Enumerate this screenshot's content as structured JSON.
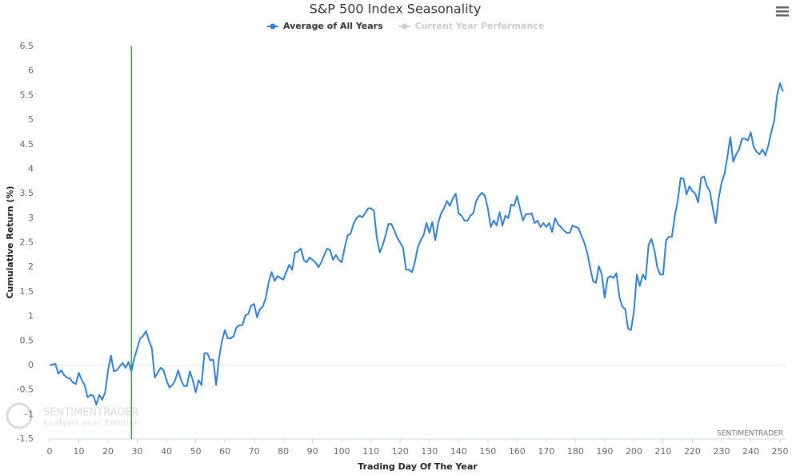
{
  "chart_data": {
    "type": "line",
    "title": "S&P 500 Index Seasonality",
    "xlabel": "Trading Day Of The Year",
    "ylabel": "Cumulative Return (%)",
    "credits": "SENTIMENTRADER",
    "watermark": {
      "name": "SENTIMENTRADER",
      "tagline": "Analysis over Emotion"
    },
    "xlim": [
      0,
      252
    ],
    "xticks": [
      0,
      10,
      20,
      30,
      40,
      50,
      60,
      70,
      80,
      90,
      100,
      110,
      120,
      130,
      140,
      150,
      160,
      170,
      180,
      190,
      200,
      210,
      220,
      230,
      240,
      250
    ],
    "ylim": [
      -1.5,
      6.5
    ],
    "yticks": [
      -1.5,
      -1,
      -0.5,
      0,
      0.5,
      1,
      1.5,
      2,
      2.5,
      3,
      3.5,
      4,
      4.5,
      5,
      5.5,
      6,
      6.5
    ],
    "zero_line": true,
    "plot_lines": [
      {
        "value": 28,
        "color": "#2e7d32"
      }
    ],
    "legend": "top",
    "series": [
      {
        "name": "Average of All Years",
        "color": "#2f7ed8",
        "visible": true,
        "values": [
          0,
          0.02,
          0.03,
          -0.17,
          -0.1,
          -0.2,
          -0.25,
          -0.27,
          -0.35,
          -0.38,
          -0.15,
          -0.3,
          -0.4,
          -0.65,
          -0.6,
          -0.62,
          -0.8,
          -0.6,
          -0.7,
          -0.55,
          -0.1,
          0.2,
          -0.12,
          -0.1,
          -0.02,
          0.05,
          -0.05,
          0.07,
          -0.12,
          0.15,
          0.35,
          0.55,
          0.6,
          0.7,
          0.5,
          0.35,
          -0.25,
          -0.15,
          -0.05,
          -0.1,
          -0.3,
          -0.45,
          -0.4,
          -0.3,
          -0.1,
          -0.3,
          -0.42,
          -0.42,
          -0.12,
          -0.3,
          -0.55,
          -0.3,
          -0.4,
          0.25,
          0.25,
          0.1,
          0.12,
          -0.4,
          0.15,
          0.5,
          0.72,
          0.55,
          0.55,
          0.6,
          0.78,
          0.82,
          0.82,
          1.02,
          1.05,
          1.22,
          1.25,
          0.98,
          1.15,
          1.2,
          1.38,
          1.7,
          1.9,
          1.72,
          1.82,
          1.78,
          1.75,
          1.9,
          2.05,
          1.95,
          2.3,
          2.32,
          2.38,
          2.15,
          2.1,
          2.2,
          2.15,
          2.1,
          2.0,
          2.1,
          2.25,
          2.38,
          2.35,
          2.15,
          2.25,
          2.15,
          2.1,
          2.4,
          2.65,
          2.68,
          2.88,
          3.0,
          3.05,
          3.02,
          3.1,
          3.2,
          3.2,
          3.15,
          2.6,
          2.3,
          2.45,
          2.65,
          2.88,
          2.88,
          2.75,
          2.6,
          2.5,
          2.4,
          1.95,
          1.95,
          1.9,
          2.1,
          2.4,
          2.55,
          2.65,
          2.9,
          2.7,
          2.92,
          2.55,
          2.9,
          3.1,
          3.2,
          3.35,
          3.25,
          3.4,
          3.5,
          3.1,
          3.05,
          2.95,
          2.95,
          3.05,
          3.1,
          3.35,
          3.45,
          3.52,
          3.45,
          3.2,
          2.82,
          2.95,
          2.85,
          3.12,
          2.85,
          3.05,
          3.0,
          3.28,
          3.25,
          3.45,
          3.2,
          2.95,
          3.08,
          3.08,
          3.1,
          2.9,
          2.95,
          2.82,
          2.9,
          2.82,
          2.9,
          2.72,
          3.0,
          2.88,
          2.82,
          2.75,
          2.7,
          2.7,
          2.85,
          2.82,
          2.8,
          2.65,
          2.5,
          2.3,
          2.0,
          1.72,
          1.68,
          2.02,
          1.85,
          1.38,
          1.78,
          1.82,
          1.78,
          1.88,
          1.4,
          1.2,
          1.15,
          0.75,
          0.72,
          1.1,
          1.85,
          1.62,
          1.85,
          1.75,
          2.45,
          2.58,
          2.35,
          2.0,
          1.85,
          1.85,
          2.55,
          2.62,
          2.62,
          3.05,
          3.35,
          3.82,
          3.8,
          3.48,
          3.65,
          3.55,
          3.5,
          3.32,
          3.82,
          3.85,
          3.65,
          3.55,
          3.2,
          2.9,
          3.4,
          3.72,
          3.9,
          4.25,
          4.65,
          4.15,
          4.3,
          4.4,
          4.62,
          4.62,
          4.58,
          4.75,
          4.45,
          4.35,
          4.3,
          4.4,
          4.28,
          4.48,
          4.75,
          4.98,
          5.5,
          5.75,
          5.58
        ]
      },
      {
        "name": "Current Year Performance",
        "color": "#cccccc",
        "visible": false,
        "values": []
      }
    ]
  }
}
